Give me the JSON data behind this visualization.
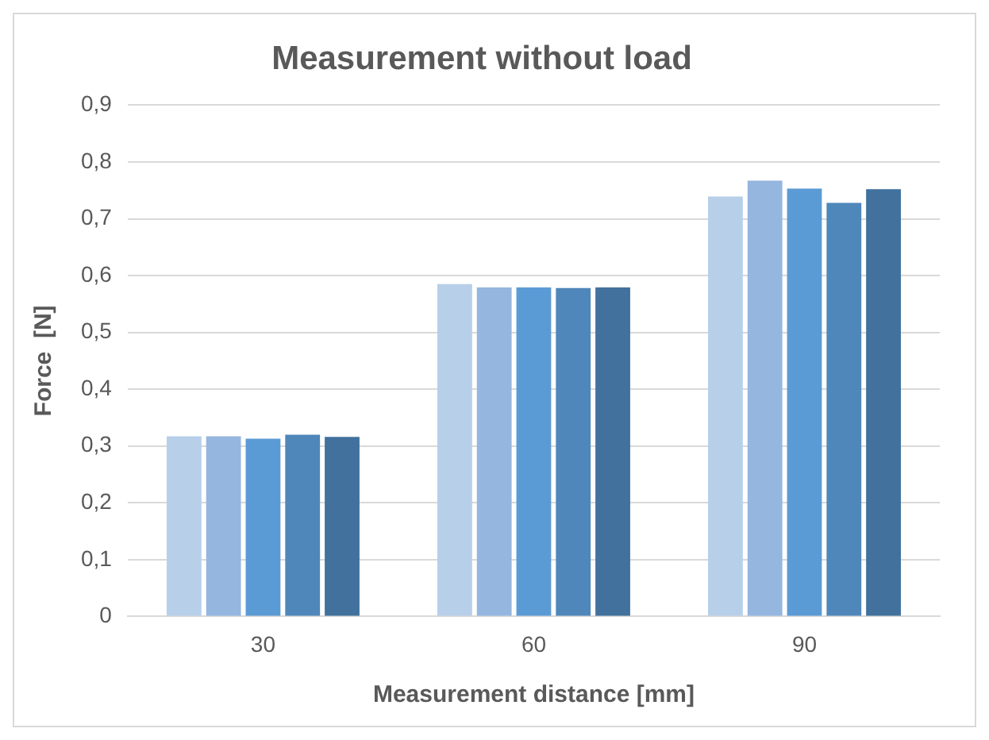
{
  "chart_data": {
    "type": "bar",
    "title": "Measurement without load",
    "xlabel": "Measurement distance [mm]",
    "ylabel": "Force  [N]",
    "categories": [
      "30",
      "60",
      "90"
    ],
    "series": [
      {
        "color": "#b8cfe9",
        "values": [
          0.317,
          0.585,
          0.739
        ]
      },
      {
        "color": "#95b6df",
        "values": [
          0.317,
          0.579,
          0.767
        ]
      },
      {
        "color": "#5b9bd5",
        "values": [
          0.313,
          0.579,
          0.753
        ]
      },
      {
        "color": "#4f87bb",
        "values": [
          0.32,
          0.578,
          0.728
        ]
      },
      {
        "color": "#41719c",
        "values": [
          0.316,
          0.579,
          0.752
        ]
      }
    ],
    "ylim": [
      0,
      0.9
    ],
    "yticks": [
      {
        "value": 0,
        "label": "0"
      },
      {
        "value": 0.1,
        "label": "0,1"
      },
      {
        "value": 0.2,
        "label": "0,2"
      },
      {
        "value": 0.3,
        "label": "0,3"
      },
      {
        "value": 0.4,
        "label": "0,4"
      },
      {
        "value": 0.5,
        "label": "0,5"
      },
      {
        "value": 0.6,
        "label": "0,6"
      },
      {
        "value": 0.7,
        "label": "0,7"
      },
      {
        "value": 0.8,
        "label": "0,8"
      },
      {
        "value": 0.9,
        "label": "0,9"
      }
    ],
    "grid": "y",
    "legend": false
  }
}
